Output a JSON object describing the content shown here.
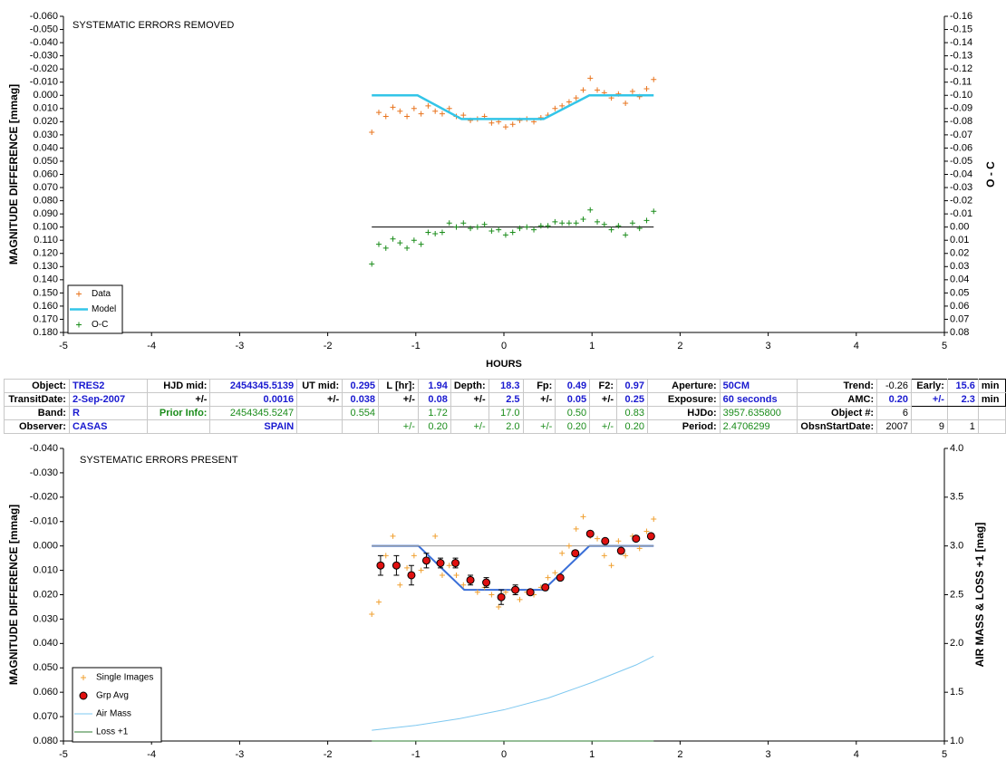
{
  "chart_data": [
    {
      "type": "scatter",
      "title": "SYSTEMATIC ERRORS REMOVED",
      "ylabel": "MAGNITUDE DIFFERENCE [mmag]",
      "y2label": "O - C",
      "xlabel": "HOURS",
      "xlim": [
        -5,
        5
      ],
      "xticks": [
        -5,
        -4,
        -3,
        -2,
        -1,
        0,
        1,
        2,
        3,
        4,
        5
      ],
      "ylim": [
        -0.06,
        0.18
      ],
      "y_reversed": true,
      "yticks": [
        {
          "value": -0.06,
          "label": "-0.060"
        },
        {
          "value": -0.05,
          "label": "-0.050"
        },
        {
          "value": -0.04,
          "label": "-0.040"
        },
        {
          "value": -0.03,
          "label": "-0.030"
        },
        {
          "value": -0.02,
          "label": "-0.020"
        },
        {
          "value": -0.01,
          "label": "-0.010"
        },
        {
          "value": 0,
          "label": "0.000"
        },
        {
          "value": 0.01,
          "label": "0.010"
        },
        {
          "value": 0.02,
          "label": "0.020"
        },
        {
          "value": 0.03,
          "label": "0.030"
        },
        {
          "value": 0.04,
          "label": "0.040"
        },
        {
          "value": 0.05,
          "label": "0.050"
        },
        {
          "value": 0.06,
          "label": "0.060"
        },
        {
          "value": 0.07,
          "label": "0.070"
        },
        {
          "value": 0.08,
          "label": "0.080"
        },
        {
          "value": 0.09,
          "label": "0.090"
        },
        {
          "value": 0.1,
          "label": "0.100"
        },
        {
          "value": 0.11,
          "label": "0.110"
        },
        {
          "value": 0.12,
          "label": "0.120"
        },
        {
          "value": 0.13,
          "label": "0.130"
        },
        {
          "value": 0.14,
          "label": "0.140"
        },
        {
          "value": 0.15,
          "label": "0.150"
        },
        {
          "value": 0.16,
          "label": "0.160"
        },
        {
          "value": 0.17,
          "label": "0.170"
        },
        {
          "value": 0.18,
          "label": "0.180"
        }
      ],
      "y2lim": [
        -0.16,
        0.08
      ],
      "y2_reversed": true,
      "y2ticks": [
        {
          "value": -0.16,
          "label": "-0.16"
        },
        {
          "value": -0.15,
          "label": "-0.15"
        },
        {
          "value": -0.14,
          "label": "-0.14"
        },
        {
          "value": -0.13,
          "label": "-0.13"
        },
        {
          "value": -0.12,
          "label": "-0.12"
        },
        {
          "value": -0.11,
          "label": "-0.11"
        },
        {
          "value": -0.1,
          "label": "-0.10"
        },
        {
          "value": -0.09,
          "label": "-0.09"
        },
        {
          "value": -0.08,
          "label": "-0.08"
        },
        {
          "value": -0.07,
          "label": "-0.07"
        },
        {
          "value": -0.06,
          "label": "-0.06"
        },
        {
          "value": -0.05,
          "label": "-0.05"
        },
        {
          "value": -0.04,
          "label": "-0.04"
        },
        {
          "value": -0.03,
          "label": "-0.03"
        },
        {
          "value": -0.02,
          "label": "-0.02"
        },
        {
          "value": -0.01,
          "label": "-0.01"
        },
        {
          "value": 0,
          "label": "0.00"
        },
        {
          "value": 0.01,
          "label": "0.01"
        },
        {
          "value": 0.02,
          "label": "0.02"
        },
        {
          "value": 0.03,
          "label": "0.03"
        },
        {
          "value": 0.04,
          "label": "0.04"
        },
        {
          "value": 0.05,
          "label": "0.05"
        },
        {
          "value": 0.06,
          "label": "0.06"
        },
        {
          "value": 0.07,
          "label": "0.07"
        },
        {
          "value": 0.08,
          "label": "0.08"
        }
      ],
      "x": [
        -1.5,
        -1.42,
        -1.34,
        -1.26,
        -1.18,
        -1.1,
        -1.02,
        -0.94,
        -0.86,
        -0.78,
        -0.7,
        -0.62,
        -0.54,
        -0.46,
        -0.38,
        -0.3,
        -0.22,
        -0.14,
        -0.06,
        0.02,
        0.1,
        0.18,
        0.26,
        0.34,
        0.42,
        0.5,
        0.58,
        0.66,
        0.74,
        0.82,
        0.9,
        0.98,
        1.06,
        1.14,
        1.22,
        1.3,
        1.38,
        1.46,
        1.54,
        1.62,
        1.7
      ],
      "series": [
        {
          "name": "Data",
          "color": "#e8741e",
          "marker": "+",
          "values": [
            0.028,
            0.013,
            0.016,
            0.009,
            0.012,
            0.016,
            0.01,
            0.014,
            0.008,
            0.012,
            0.014,
            0.01,
            0.016,
            0.015,
            0.019,
            0.018,
            0.016,
            0.021,
            0.02,
            0.024,
            0.022,
            0.019,
            0.018,
            0.02,
            0.017,
            0.015,
            0.01,
            0.008,
            0.005,
            0.002,
            -0.004,
            -0.013,
            -0.004,
            -0.002,
            0.002,
            -0.001,
            0.006,
            -0.003,
            0.001,
            -0.005,
            -0.012
          ]
        },
        {
          "name": "Model",
          "color": "#33c5e8",
          "marker": "line",
          "x": [
            -1.5,
            -0.98,
            -0.48,
            0.45,
            0.97,
            1.7
          ],
          "values": [
            0,
            0,
            0.018,
            0.018,
            0,
            0
          ]
        },
        {
          "name": "O-C",
          "color": "#1a8c1a",
          "marker": "+",
          "axis": "y2",
          "values": [
            0.028,
            0.013,
            0.016,
            0.009,
            0.012,
            0.016,
            0.01,
            0.013,
            0.004,
            0.005,
            0.004,
            -0.003,
            0,
            -0.003,
            0.001,
            0,
            -0.002,
            0.003,
            0.002,
            0.006,
            0.004,
            0.001,
            0,
            0.002,
            -0.001,
            -0.001,
            -0.004,
            -0.003,
            -0.003,
            -0.003,
            -0.006,
            -0.013,
            -0.004,
            -0.002,
            0.002,
            -0.001,
            0.006,
            -0.003,
            0.001,
            -0.005,
            -0.012
          ]
        }
      ],
      "reference_lines": [
        {
          "color": "#000000",
          "axis": "y2",
          "x": [
            -1.5,
            1.7
          ],
          "values": [
            0,
            0
          ]
        }
      ]
    },
    {
      "type": "scatter",
      "title": "SYSTEMATIC ERRORS PRESENT",
      "ylabel": "MAGNITUDE DIFFERENCE [mmag]",
      "y2label": "AIR MASS & LOSS +1 [mag]",
      "xlim": [
        -5,
        5
      ],
      "xticks": [
        -5,
        -4,
        -3,
        -2,
        -1,
        0,
        1,
        2,
        3,
        4,
        5
      ],
      "ylim": [
        -0.04,
        0.08
      ],
      "y_reversed": true,
      "yticks": [
        {
          "value": -0.04,
          "label": "-0.040"
        },
        {
          "value": -0.03,
          "label": "-0.030"
        },
        {
          "value": -0.02,
          "label": "-0.020"
        },
        {
          "value": -0.01,
          "label": "-0.010"
        },
        {
          "value": 0,
          "label": "0.000"
        },
        {
          "value": 0.01,
          "label": "0.010"
        },
        {
          "value": 0.02,
          "label": "0.020"
        },
        {
          "value": 0.03,
          "label": "0.030"
        },
        {
          "value": 0.04,
          "label": "0.040"
        },
        {
          "value": 0.05,
          "label": "0.050"
        },
        {
          "value": 0.06,
          "label": "0.060"
        },
        {
          "value": 0.07,
          "label": "0.070"
        },
        {
          "value": 0.08,
          "label": "0.080"
        }
      ],
      "y2lim": [
        1,
        4
      ],
      "y2_reversed": false,
      "y2ticks": [
        {
          "value": 1,
          "label": "1.0"
        },
        1.5,
        {
          "value": 2,
          "label": "2.0"
        },
        2.5,
        {
          "value": 3,
          "label": "3.0"
        },
        3.5,
        {
          "value": 4,
          "label": "4.0"
        }
      ],
      "x": [
        -1.5,
        -1.42,
        -1.34,
        -1.26,
        -1.18,
        -1.1,
        -1.02,
        -0.94,
        -0.86,
        -0.78,
        -0.7,
        -0.62,
        -0.54,
        -0.46,
        -0.38,
        -0.3,
        -0.22,
        -0.14,
        -0.06,
        0.02,
        0.1,
        0.18,
        0.26,
        0.34,
        0.42,
        0.5,
        0.58,
        0.66,
        0.74,
        0.82,
        0.9,
        0.98,
        1.06,
        1.14,
        1.22,
        1.3,
        1.38,
        1.46,
        1.54,
        1.62,
        1.7
      ],
      "series": [
        {
          "name": "Single Images",
          "color": "#f0a030",
          "marker": "+",
          "values": [
            0.028,
            0.023,
            0.004,
            -0.004,
            0.016,
            0.009,
            0.004,
            0.01,
            0.006,
            -0.004,
            0.012,
            0.008,
            0.012,
            0.016,
            0.014,
            0.019,
            0.017,
            0.02,
            0.025,
            0.019,
            0.018,
            0.022,
            0.019,
            0.02,
            0.017,
            0.013,
            0.011,
            0.003,
            0,
            -0.007,
            -0.012,
            -0.004,
            -0.003,
            0.004,
            0.008,
            -0.002,
            0.004,
            -0.004,
            0.001,
            -0.006,
            -0.011
          ]
        },
        {
          "name": "Grp Avg",
          "color": "#e01010",
          "marker": "o",
          "x": [
            -1.4,
            -1.22,
            -1.05,
            -0.88,
            -0.72,
            -0.55,
            -0.38,
            -0.2,
            -0.03,
            0.13,
            0.3,
            0.47,
            0.64,
            0.81,
            0.98,
            1.15,
            1.33,
            1.5,
            1.67
          ],
          "values": [
            0.008,
            0.008,
            0.012,
            0.006,
            0.007,
            0.007,
            0.014,
            0.015,
            0.021,
            0.018,
            0.019,
            0.017,
            0.013,
            0.003,
            -0.005,
            -0.002,
            0.002,
            -0.003,
            -0.004
          ],
          "errors": [
            0.004,
            0.004,
            0.004,
            0.003,
            0.002,
            0.002,
            0.002,
            0.002,
            0.003,
            0.002,
            0.001,
            0.001,
            0.001,
            0.001,
            0.001,
            0.001,
            0.001,
            0.001,
            0.001
          ]
        },
        {
          "name": "Air Mass",
          "color": "#7ec8f0",
          "marker": "line",
          "axis": "y2",
          "x": [
            -1.5,
            -1,
            -0.5,
            0,
            0.5,
            1,
            1.5,
            1.7
          ],
          "values": [
            1.11,
            1.16,
            1.23,
            1.32,
            1.44,
            1.6,
            1.78,
            1.87
          ]
        },
        {
          "name": "Loss +1",
          "color": "#2e7d32",
          "marker": "line",
          "axis": "y2",
          "x": [
            -1.5,
            1.7
          ],
          "values": [
            1,
            1
          ]
        }
      ],
      "reference_lines": [
        {
          "color": "#3a6fd8",
          "x": [
            -1.5,
            -0.97,
            -0.45,
            0.45,
            0.97,
            1.7
          ],
          "values": [
            0,
            0,
            0.018,
            0.018,
            0,
            0
          ]
        },
        {
          "color": "#999999",
          "x": [
            -1.5,
            1.7
          ],
          "values": [
            0,
            0
          ]
        }
      ]
    }
  ],
  "table": {
    "rows": [
      [
        "Object:",
        "TRES2",
        "HJD mid:",
        "2454345.5139",
        "UT mid:",
        "0.295",
        "L [hr]:",
        "1.94",
        "Depth:",
        "18.3",
        "Fp:",
        "0.49",
        "F2:",
        "0.97",
        "Aperture:",
        "50CM",
        "Trend:",
        "-0.26",
        "Early:",
        "15.6",
        "min"
      ],
      [
        "TransitDate:",
        "2-Sep-2007",
        "+/-",
        "0.0016",
        "+/-",
        "0.038",
        "+/-",
        "0.08",
        "+/-",
        "2.5",
        "+/-",
        "0.05",
        "+/-",
        "0.25",
        "Exposure:",
        "60 seconds",
        "AMC:",
        "0.20",
        "+/-",
        "2.3",
        "min"
      ],
      [
        "Band:",
        "R",
        "Prior Info:",
        "2454345.5247",
        null,
        "0.554",
        null,
        "1.72",
        null,
        "17.0",
        null,
        "0.50",
        null,
        "0.83",
        "HJDo:",
        "3957.635800",
        "Object #:",
        "6",
        null,
        null,
        null
      ],
      [
        "Observer:",
        "CASAS",
        null,
        "SPAIN",
        null,
        null,
        "+/-",
        "0.20",
        "+/-",
        "2.0",
        "+/-",
        "0.20",
        "+/-",
        "0.20",
        "Period:",
        "2.4706299",
        "ObsnStartDate:",
        "2007",
        "9",
        "1",
        null
      ]
    ]
  }
}
